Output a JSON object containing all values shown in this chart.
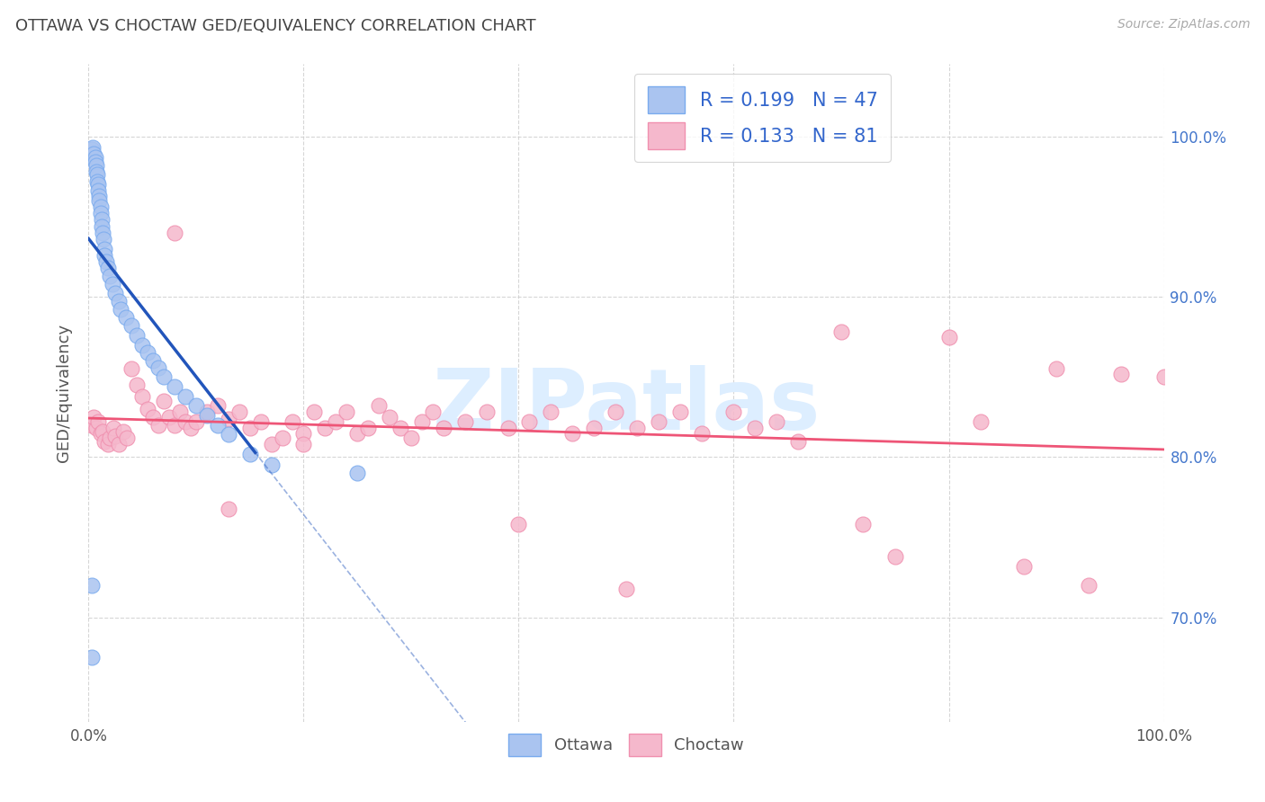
{
  "title": "OTTAWA VS CHOCTAW GED/EQUIVALENCY CORRELATION CHART",
  "source": "Source: ZipAtlas.com",
  "ylabel": "GED/Equivalency",
  "xlim": [
    0.0,
    1.0
  ],
  "ylim": [
    0.635,
    1.045
  ],
  "yticks": [
    0.7,
    0.8,
    0.9,
    1.0
  ],
  "ytick_labels": [
    "70.0%",
    "80.0%",
    "90.0%",
    "100.0%"
  ],
  "xticks": [
    0.0,
    0.2,
    0.4,
    0.6,
    0.8,
    1.0
  ],
  "xtick_left_label": "0.0%",
  "xtick_right_label": "100.0%",
  "ottawa_color_face": "#aac4f0",
  "ottawa_color_edge": "#7aabee",
  "choctaw_color_face": "#f5b8cc",
  "choctaw_color_edge": "#f090af",
  "ottawa_line_color": "#2255bb",
  "choctaw_line_color": "#ee5577",
  "watermark_text": "ZIPatlas",
  "watermark_color": "#ddeeff",
  "title_color": "#444444",
  "source_color": "#aaaaaa",
  "ylabel_color": "#555555",
  "right_tick_color": "#4477cc",
  "bottom_label_color": "#555555",
  "grid_color": "#cccccc",
  "legend_face_color": "#ffffff",
  "legend_edge_color": "#cccccc",
  "legend_text_color": "#3366cc",
  "legend_r_ottawa": "R = 0.199",
  "legend_n_ottawa": "N = 47",
  "legend_r_choctaw": "R = 0.133",
  "legend_n_choctaw": "N = 81",
  "ottawa_label": "Ottawa",
  "choctaw_label": "Choctaw",
  "n_ottawa": 47,
  "n_choctaw": 81,
  "ottawa_x": [
    0.003,
    0.004,
    0.005,
    0.006,
    0.006,
    0.007,
    0.007,
    0.008,
    0.008,
    0.009,
    0.009,
    0.01,
    0.01,
    0.011,
    0.011,
    0.012,
    0.012,
    0.013,
    0.014,
    0.015,
    0.015,
    0.016,
    0.018,
    0.02,
    0.022,
    0.025,
    0.028,
    0.03,
    0.035,
    0.04,
    0.045,
    0.05,
    0.055,
    0.06,
    0.065,
    0.07,
    0.08,
    0.09,
    0.1,
    0.11,
    0.12,
    0.13,
    0.15,
    0.17,
    0.003,
    0.25,
    0.003
  ],
  "ottawa_y": [
    0.992,
    0.993,
    0.989,
    0.987,
    0.984,
    0.982,
    0.978,
    0.976,
    0.972,
    0.97,
    0.966,
    0.963,
    0.96,
    0.956,
    0.952,
    0.948,
    0.944,
    0.94,
    0.936,
    0.93,
    0.926,
    0.922,
    0.918,
    0.913,
    0.908,
    0.902,
    0.897,
    0.892,
    0.887,
    0.882,
    0.876,
    0.87,
    0.865,
    0.86,
    0.856,
    0.85,
    0.844,
    0.838,
    0.832,
    0.826,
    0.82,
    0.814,
    0.802,
    0.795,
    0.72,
    0.79,
    0.675
  ],
  "choctaw_x": [
    0.003,
    0.005,
    0.007,
    0.009,
    0.011,
    0.013,
    0.015,
    0.018,
    0.02,
    0.023,
    0.025,
    0.028,
    0.032,
    0.036,
    0.04,
    0.045,
    0.05,
    0.055,
    0.06,
    0.065,
    0.07,
    0.075,
    0.08,
    0.085,
    0.09,
    0.095,
    0.1,
    0.11,
    0.12,
    0.13,
    0.14,
    0.15,
    0.16,
    0.17,
    0.18,
    0.19,
    0.2,
    0.21,
    0.22,
    0.23,
    0.24,
    0.25,
    0.26,
    0.27,
    0.28,
    0.29,
    0.3,
    0.31,
    0.32,
    0.33,
    0.35,
    0.37,
    0.39,
    0.41,
    0.43,
    0.45,
    0.47,
    0.49,
    0.51,
    0.53,
    0.55,
    0.57,
    0.6,
    0.62,
    0.64,
    0.66,
    0.7,
    0.72,
    0.75,
    0.8,
    0.83,
    0.87,
    0.9,
    0.93,
    0.96,
    1.0,
    0.08,
    0.13,
    0.2,
    0.4,
    0.5
  ],
  "choctaw_y": [
    0.82,
    0.825,
    0.818,
    0.822,
    0.815,
    0.816,
    0.81,
    0.808,
    0.812,
    0.818,
    0.813,
    0.808,
    0.816,
    0.812,
    0.855,
    0.845,
    0.838,
    0.83,
    0.825,
    0.82,
    0.835,
    0.825,
    0.82,
    0.828,
    0.822,
    0.818,
    0.822,
    0.828,
    0.832,
    0.824,
    0.828,
    0.818,
    0.822,
    0.808,
    0.812,
    0.822,
    0.815,
    0.828,
    0.818,
    0.822,
    0.828,
    0.815,
    0.818,
    0.832,
    0.825,
    0.818,
    0.812,
    0.822,
    0.828,
    0.818,
    0.822,
    0.828,
    0.818,
    0.822,
    0.828,
    0.815,
    0.818,
    0.828,
    0.818,
    0.822,
    0.828,
    0.815,
    0.828,
    0.818,
    0.822,
    0.81,
    0.878,
    0.758,
    0.738,
    0.875,
    0.822,
    0.732,
    0.855,
    0.72,
    0.852,
    0.85,
    0.94,
    0.768,
    0.808,
    0.758,
    0.718
  ]
}
